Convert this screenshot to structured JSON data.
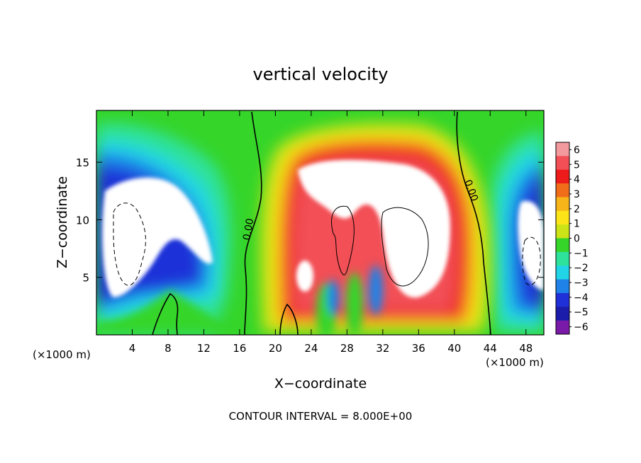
{
  "chart_data": {
    "type": "heatmap",
    "title": "vertical velocity",
    "xlabel": "X−coordinate",
    "ylabel": "Z−coordinate",
    "x_unit_left": "(×1000 m)",
    "x_unit_right": "(×1000 m)",
    "x_ticks": [
      "4",
      "8",
      "12",
      "16",
      "20",
      "24",
      "28",
      "32",
      "36",
      "40",
      "44",
      "48"
    ],
    "y_ticks": [
      "5",
      "10",
      "15"
    ],
    "xlim": [
      0,
      50
    ],
    "ylim": [
      0,
      19.5
    ],
    "colorbar": {
      "labels": [
        "6",
        "5",
        "4",
        "3",
        "2",
        "1",
        "0",
        "−1",
        "−2",
        "−3",
        "−4",
        "−5",
        "−6"
      ],
      "range": [
        -6,
        6
      ],
      "colors": [
        "#f39a9e",
        "#f24f56",
        "#ee1b1b",
        "#f26d1a",
        "#f7b519",
        "#fbe418",
        "#cbe317",
        "#35d52a",
        "#2ee29b",
        "#22d5e6",
        "#1f82e8",
        "#1f30d8",
        "#1c1caa",
        "#7a1aa8"
      ]
    },
    "contour_labels": [
      "0.00",
      "0.00"
    ],
    "contour_interval": "CONTOUR INTERVAL = 8.000E+00"
  }
}
